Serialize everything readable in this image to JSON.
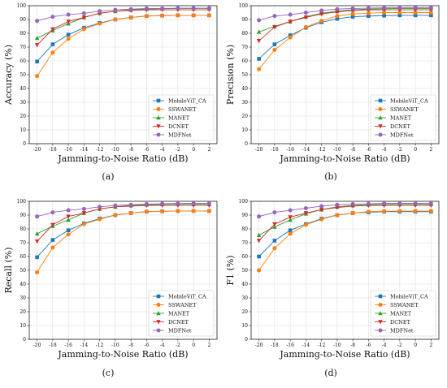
{
  "series_styles": [
    {
      "name": "MobileViT_CA",
      "color": "#1f77b4",
      "marker": "square"
    },
    {
      "name": "SSWANET",
      "color": "#ff7f0e",
      "marker": "circle"
    },
    {
      "name": "MANET",
      "color": "#2ca02c",
      "marker": "triangle-up"
    },
    {
      "name": "DCNET",
      "color": "#d62728",
      "marker": "triangle-down"
    },
    {
      "name": "MDFNet",
      "color": "#9467bd",
      "marker": "circle"
    }
  ],
  "chart_data": [
    {
      "type": "line",
      "caption": "(a)",
      "xlabel": "Jamming-to-Noise Ratio (dB)",
      "ylabel": "Accuracy (%)",
      "xlim": [
        -21,
        3
      ],
      "ylim": [
        0,
        100
      ],
      "x_ticks": [
        -20,
        -18,
        -16,
        -14,
        -12,
        -10,
        -8,
        -6,
        -4,
        -2,
        0,
        2
      ],
      "y_ticks": [
        0,
        10,
        20,
        30,
        40,
        50,
        60,
        70,
        80,
        90,
        100
      ],
      "legend_position": "lower-right",
      "x": [
        -20,
        -18,
        -16,
        -14,
        -12,
        -10,
        -8,
        -6,
        -4,
        -2,
        0,
        2
      ],
      "series": [
        {
          "name": "MobileViT_CA",
          "values": [
            59.5,
            72,
            79,
            84,
            87.5,
            90,
            91.5,
            92.5,
            92.8,
            93,
            93,
            93
          ]
        },
        {
          "name": "SSWANET",
          "values": [
            49,
            66,
            76,
            83,
            87,
            90,
            91.5,
            92.5,
            92.8,
            93,
            93,
            93
          ]
        },
        {
          "name": "MANET",
          "values": [
            76.5,
            82,
            87,
            91.5,
            94.5,
            96,
            97,
            97.5,
            97.8,
            98,
            98,
            98
          ]
        },
        {
          "name": "DCNET",
          "values": [
            71.5,
            83,
            88.5,
            91.5,
            94.5,
            96,
            96.5,
            97,
            97,
            97,
            97,
            97
          ]
        },
        {
          "name": "MDFNet",
          "values": [
            89,
            92,
            93.5,
            94.5,
            96,
            97,
            97.5,
            98,
            98,
            98.2,
            98.2,
            98.2
          ]
        }
      ]
    },
    {
      "type": "line",
      "caption": "(b)",
      "xlabel": "Jamming-to-Noise Ratio (dB)",
      "ylabel": "Precision (%)",
      "xlim": [
        -21,
        3
      ],
      "ylim": [
        0,
        100
      ],
      "x_ticks": [
        -20,
        -18,
        -16,
        -14,
        -12,
        -10,
        -8,
        -6,
        -4,
        -2,
        0,
        2
      ],
      "y_ticks": [
        0,
        10,
        20,
        30,
        40,
        50,
        60,
        70,
        80,
        90,
        100
      ],
      "legend_position": "lower-right",
      "x": [
        -20,
        -18,
        -16,
        -14,
        -12,
        -10,
        -8,
        -6,
        -4,
        -2,
        0,
        2
      ],
      "series": [
        {
          "name": "MobileViT_CA",
          "values": [
            61.5,
            72,
            78.5,
            84,
            88,
            90.5,
            92,
            92.5,
            92.8,
            93,
            93,
            93
          ]
        },
        {
          "name": "SSWANET",
          "values": [
            54,
            68,
            77,
            84.5,
            89,
            92.5,
            94,
            94.5,
            95,
            95,
            95,
            95
          ]
        },
        {
          "name": "MANET",
          "values": [
            81,
            85,
            88.5,
            92,
            94.5,
            96,
            97,
            97.5,
            97.8,
            98,
            98,
            98
          ]
        },
        {
          "name": "DCNET",
          "values": [
            74.5,
            84.5,
            88.5,
            91.5,
            94,
            95.5,
            96.5,
            97,
            97,
            97,
            97,
            97
          ]
        },
        {
          "name": "MDFNet",
          "values": [
            89.5,
            92.5,
            93.5,
            95,
            96.5,
            97.5,
            98,
            98.2,
            98.5,
            98.5,
            98.5,
            98.5
          ]
        }
      ]
    },
    {
      "type": "line",
      "caption": "(c)",
      "xlabel": "Jamming-to-Noise Ratio (dB)",
      "ylabel": "Recall (%)",
      "xlim": [
        -21,
        3
      ],
      "ylim": [
        0,
        100
      ],
      "x_ticks": [
        -20,
        -18,
        -16,
        -14,
        -12,
        -10,
        -8,
        -6,
        -4,
        -2,
        0,
        2
      ],
      "y_ticks": [
        0,
        10,
        20,
        30,
        40,
        50,
        60,
        70,
        80,
        90,
        100
      ],
      "legend_position": "lower-right",
      "x": [
        -20,
        -18,
        -16,
        -14,
        -12,
        -10,
        -8,
        -6,
        -4,
        -2,
        0,
        2
      ],
      "series": [
        {
          "name": "MobileViT_CA",
          "values": [
            59.5,
            72,
            79,
            84,
            87.5,
            90,
            91.5,
            92.5,
            92.8,
            93,
            93,
            93
          ]
        },
        {
          "name": "SSWANET",
          "values": [
            48.5,
            66.5,
            76,
            83.5,
            87,
            90,
            91.5,
            92.5,
            92.8,
            93,
            93,
            93
          ]
        },
        {
          "name": "MANET",
          "values": [
            76.5,
            82,
            86.5,
            91.5,
            94.5,
            96,
            97,
            97.5,
            97.8,
            98,
            98,
            98
          ]
        },
        {
          "name": "DCNET",
          "values": [
            71,
            83,
            89,
            91.5,
            94.5,
            96,
            96.5,
            97,
            97,
            97,
            97,
            97
          ]
        },
        {
          "name": "MDFNet",
          "values": [
            89,
            92,
            93.5,
            94.5,
            96,
            97,
            97.5,
            98,
            98.2,
            98.5,
            98.5,
            98.5
          ]
        }
      ]
    },
    {
      "type": "line",
      "caption": "(d)",
      "xlabel": "Jamming-to-Noise Ratio (dB)",
      "ylabel": "F1 (%)",
      "xlim": [
        -21,
        3
      ],
      "ylim": [
        0,
        100
      ],
      "x_ticks": [
        -20,
        -18,
        -16,
        -14,
        -12,
        -10,
        -8,
        -6,
        -4,
        -2,
        0,
        2
      ],
      "y_ticks": [
        0,
        10,
        20,
        30,
        40,
        50,
        60,
        70,
        80,
        90,
        100
      ],
      "legend_position": "lower-right",
      "x": [
        -20,
        -18,
        -16,
        -14,
        -12,
        -10,
        -8,
        -6,
        -4,
        -2,
        0,
        2
      ],
      "series": [
        {
          "name": "MobileViT_CA",
          "values": [
            60,
            71.5,
            79,
            83.5,
            87.5,
            90,
            91.5,
            92,
            92.5,
            92.5,
            92.5,
            92.5
          ]
        },
        {
          "name": "SSWANET",
          "values": [
            50,
            66,
            76.5,
            83,
            87,
            90,
            91.5,
            92.5,
            92.8,
            93,
            93,
            93
          ]
        },
        {
          "name": "MANET",
          "values": [
            75.5,
            81.5,
            86.5,
            91,
            94,
            96,
            97,
            97.5,
            97.8,
            98,
            98,
            98
          ]
        },
        {
          "name": "DCNET",
          "values": [
            71.5,
            83.5,
            88.5,
            91.5,
            94,
            95.5,
            96.5,
            97,
            97,
            97,
            97,
            97
          ]
        },
        {
          "name": "MDFNet",
          "values": [
            89,
            92,
            93.5,
            95,
            96.5,
            97.5,
            98,
            98.2,
            98.5,
            98.5,
            98.5,
            98.5
          ]
        }
      ]
    }
  ]
}
